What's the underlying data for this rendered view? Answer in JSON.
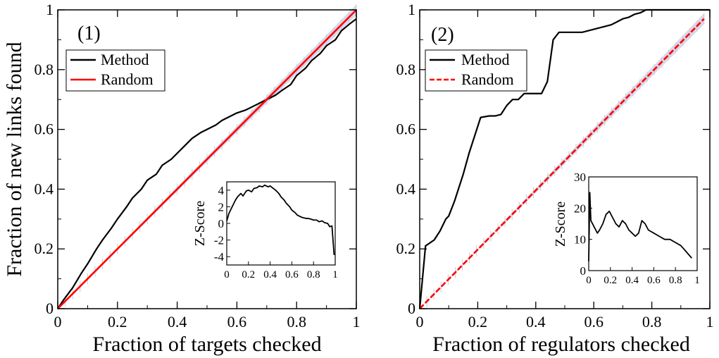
{
  "chart_data": [
    {
      "type": "line",
      "panel_label": "(1)",
      "xlabel": "Fraction of targets checked",
      "ylabel": "Fraction of new links found",
      "xlim": [
        0,
        1
      ],
      "ylim": [
        0,
        1
      ],
      "xticks": [
        "0",
        "0.2",
        "0.4",
        "0.6",
        "0.8",
        "1"
      ],
      "yticks": [
        "0",
        "0.2",
        "0.4",
        "0.6",
        "0.8",
        "1"
      ],
      "grid": false,
      "legend": "top-left",
      "series": [
        {
          "name": "Method",
          "color": "#000000",
          "x": [
            0,
            0.02,
            0.05,
            0.08,
            0.1,
            0.13,
            0.15,
            0.18,
            0.2,
            0.23,
            0.25,
            0.28,
            0.3,
            0.33,
            0.35,
            0.38,
            0.4,
            0.43,
            0.45,
            0.48,
            0.5,
            0.53,
            0.55,
            0.58,
            0.6,
            0.63,
            0.65,
            0.68,
            0.7,
            0.73,
            0.75,
            0.78,
            0.8,
            0.83,
            0.85,
            0.88,
            0.9,
            0.93,
            0.95,
            0.98,
            1
          ],
          "y": [
            0,
            0.03,
            0.07,
            0.12,
            0.15,
            0.2,
            0.23,
            0.27,
            0.3,
            0.34,
            0.37,
            0.4,
            0.43,
            0.45,
            0.48,
            0.5,
            0.52,
            0.55,
            0.57,
            0.59,
            0.6,
            0.615,
            0.63,
            0.645,
            0.655,
            0.665,
            0.675,
            0.69,
            0.7,
            0.715,
            0.73,
            0.75,
            0.78,
            0.805,
            0.83,
            0.855,
            0.88,
            0.9,
            0.93,
            0.955,
            0.97
          ]
        },
        {
          "name": "Random",
          "color": "#ff0000",
          "x": [
            0,
            1
          ],
          "y": [
            0,
            1
          ]
        }
      ],
      "error_band": {
        "color": "#d8d8e8"
      },
      "inset": {
        "ylabel": "Z-Score",
        "xlim": [
          0,
          1
        ],
        "ylim": [
          -5,
          5
        ],
        "xticks": [
          "0",
          "0.2",
          "0.4",
          "0.6",
          "0.8",
          "1"
        ],
        "yticks": [
          "-4",
          "-2",
          "0",
          "2",
          "4"
        ],
        "x": [
          0,
          0.02,
          0.05,
          0.08,
          0.1,
          0.13,
          0.15,
          0.18,
          0.2,
          0.23,
          0.25,
          0.28,
          0.3,
          0.33,
          0.35,
          0.38,
          0.4,
          0.43,
          0.45,
          0.48,
          0.5,
          0.53,
          0.55,
          0.58,
          0.6,
          0.63,
          0.65,
          0.68,
          0.7,
          0.73,
          0.75,
          0.78,
          0.8,
          0.83,
          0.85,
          0.88,
          0.9,
          0.93,
          0.95,
          0.97,
          0.99
        ],
        "y": [
          0.3,
          1.2,
          2.0,
          2.8,
          3.2,
          3.6,
          3.3,
          3.9,
          4.0,
          3.8,
          4.2,
          4.3,
          4.5,
          4.4,
          4.6,
          4.4,
          4.5,
          4.2,
          4.0,
          3.6,
          3.2,
          2.8,
          2.4,
          2.0,
          1.6,
          1.3,
          1.0,
          0.8,
          0.7,
          0.6,
          0.6,
          0.5,
          0.4,
          0.4,
          0.2,
          0.3,
          0.1,
          0.0,
          -0.4,
          -0.3,
          -3.8
        ]
      }
    },
    {
      "type": "line",
      "panel_label": "(2)",
      "xlabel": "Fraction of regulators checked",
      "ylabel": "",
      "xlim": [
        0,
        1
      ],
      "ylim": [
        0,
        1
      ],
      "xticks": [
        "0",
        "0.2",
        "0.4",
        "0.6",
        "0.8",
        "1"
      ],
      "yticks": [
        "0",
        "0.2",
        "0.4",
        "0.6",
        "0.8",
        "1"
      ],
      "grid": false,
      "legend": "top-left",
      "series": [
        {
          "name": "Method",
          "color": "#000000",
          "x": [
            0,
            0.02,
            0.05,
            0.07,
            0.09,
            0.1,
            0.12,
            0.15,
            0.17,
            0.19,
            0.21,
            0.24,
            0.26,
            0.28,
            0.3,
            0.32,
            0.34,
            0.36,
            0.38,
            0.4,
            0.42,
            0.44,
            0.46,
            0.48,
            0.5,
            0.52,
            0.54,
            0.56,
            0.58,
            0.6,
            0.62,
            0.64,
            0.66,
            0.68,
            0.7,
            0.72,
            0.74,
            0.76,
            0.78,
            0.8,
            0.85,
            0.9,
            0.95,
            1
          ],
          "y": [
            0,
            0.21,
            0.23,
            0.26,
            0.3,
            0.31,
            0.36,
            0.45,
            0.52,
            0.58,
            0.64,
            0.645,
            0.645,
            0.65,
            0.68,
            0.7,
            0.7,
            0.72,
            0.72,
            0.72,
            0.72,
            0.76,
            0.9,
            0.925,
            0.925,
            0.925,
            0.925,
            0.925,
            0.93,
            0.935,
            0.94,
            0.945,
            0.95,
            0.96,
            0.97,
            0.975,
            0.985,
            0.99,
            1.0,
            1.0,
            1.0,
            1.0,
            1.0,
            1.0
          ]
        },
        {
          "name": "Random",
          "color": "#ff0000",
          "dashed": true,
          "x": [
            0,
            0.98
          ],
          "y": [
            0,
            0.97
          ]
        }
      ],
      "error_band": {
        "color": "#d8d8e8"
      },
      "inset": {
        "ylabel": "Z-Score",
        "xlim": [
          0,
          1
        ],
        "ylim": [
          0,
          30
        ],
        "xticks": [
          "0",
          "0.2",
          "0.4",
          "0.6",
          "0.8",
          "1"
        ],
        "yticks": [
          "0",
          "10",
          "20",
          "30"
        ],
        "x": [
          0,
          0.01,
          0.02,
          0.05,
          0.08,
          0.1,
          0.13,
          0.16,
          0.19,
          0.22,
          0.25,
          0.28,
          0.31,
          0.34,
          0.37,
          0.4,
          0.43,
          0.46,
          0.49,
          0.52,
          0.55,
          0.6,
          0.65,
          0.7,
          0.75,
          0.8,
          0.85,
          0.9,
          0.95
        ],
        "y": [
          3,
          25,
          16,
          14,
          12,
          13,
          15,
          18,
          19,
          17,
          15,
          14,
          16,
          15,
          13,
          12,
          11,
          12,
          16,
          15,
          13,
          12,
          11,
          10,
          10,
          9,
          8,
          6,
          4
        ]
      }
    }
  ]
}
